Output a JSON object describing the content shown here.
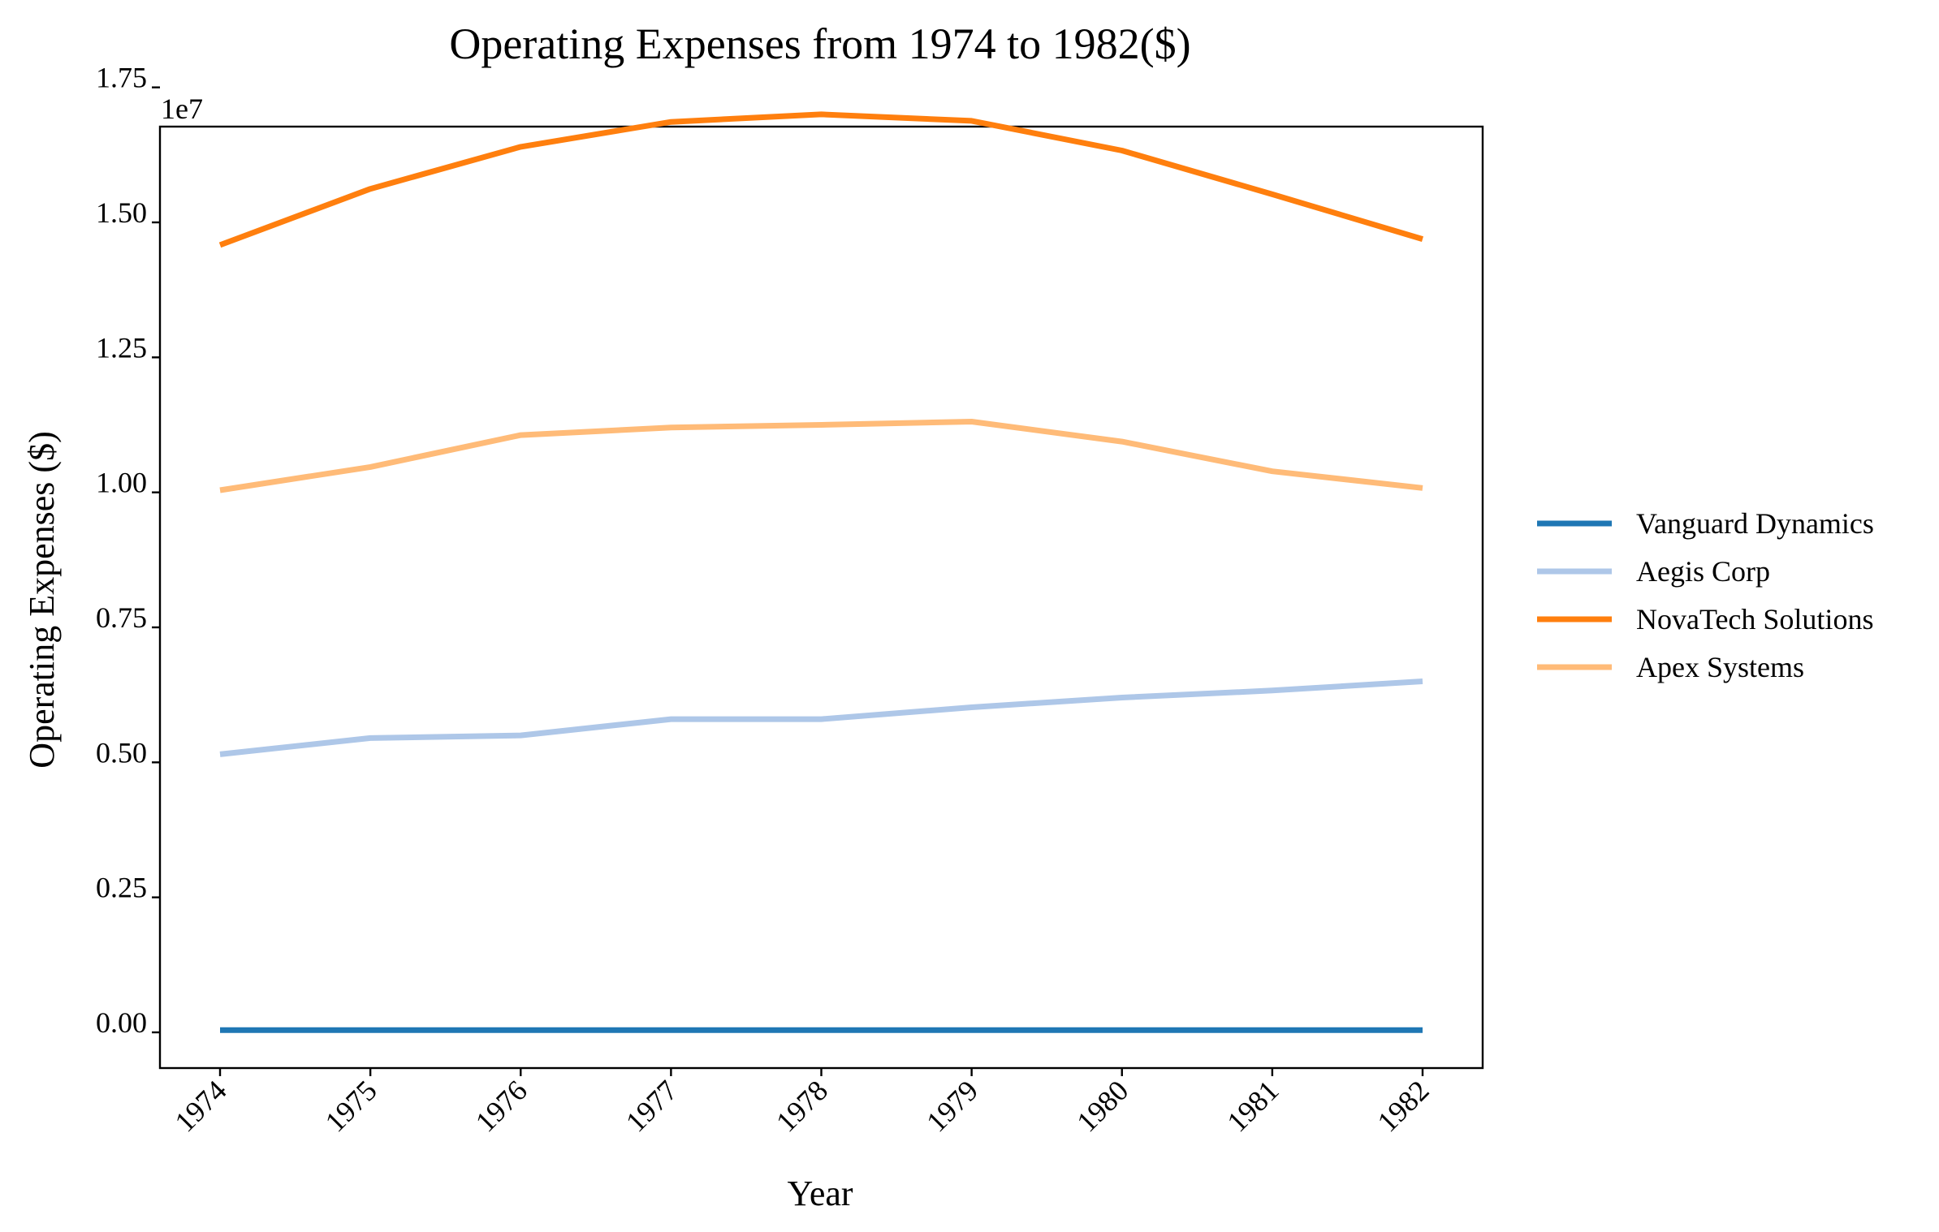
{
  "chart_data": {
    "type": "line",
    "title": "Operating Expenses from 1974 to 1982($)",
    "xlabel": "Year",
    "ylabel": "Operating Expenses ($)",
    "y_offset_label": "1e7",
    "x": [
      "1974",
      "1975",
      "1976",
      "1977",
      "1978",
      "1979",
      "1980",
      "1981",
      "1982"
    ],
    "y_ticks": [
      "0.00",
      "0.25",
      "0.50",
      "0.75",
      "1.00",
      "1.25",
      "1.50",
      "1.75"
    ],
    "y_tick_values": [
      0,
      0.25,
      0.5,
      0.75,
      1.0,
      1.25,
      1.5,
      1.75
    ],
    "ylim": [
      -0.08,
      1.96
    ],
    "y_scale": 10000000,
    "grid": false,
    "legend_position": "right",
    "series": [
      {
        "name": "Vanguard Dynamics",
        "color": "#1f77b4",
        "values": [
          40000,
          40000,
          40000,
          40000,
          40000,
          40000,
          40000,
          40000,
          40000
        ]
      },
      {
        "name": "Aegis Corp",
        "color": "#aec7e8",
        "values": [
          5150000,
          5450000,
          5500000,
          5800000,
          5800000,
          6020000,
          6200000,
          6330000,
          6500000
        ]
      },
      {
        "name": "NovaTech Solutions",
        "color": "#ff7f0e",
        "values": [
          14580000,
          15620000,
          16400000,
          16860000,
          17000000,
          16880000,
          16330000,
          15520000,
          14690000
        ]
      },
      {
        "name": "Apex Systems",
        "color": "#ffbb78",
        "values": [
          10040000,
          10470000,
          11060000,
          11200000,
          11250000,
          11310000,
          10940000,
          10390000,
          10080000
        ]
      }
    ]
  }
}
